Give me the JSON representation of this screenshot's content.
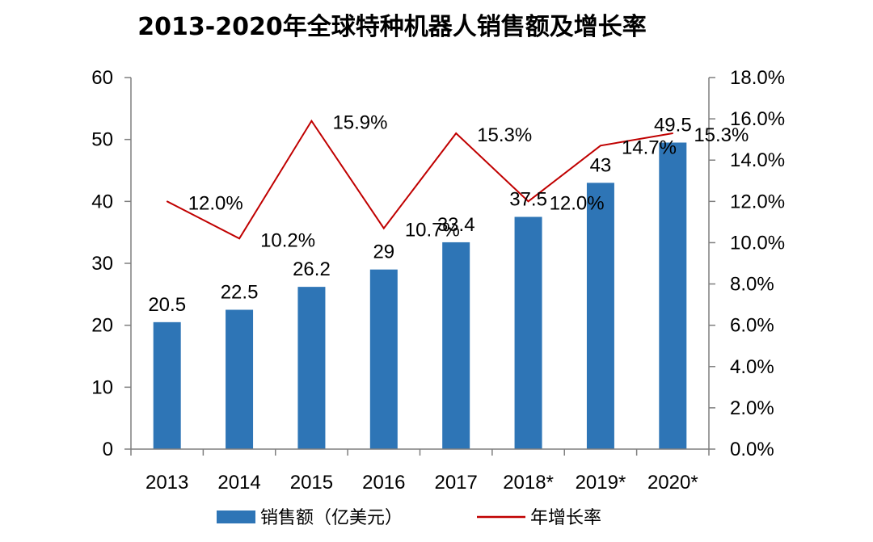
{
  "chart_data": {
    "type": "bar",
    "title": "2013-2020年全球特种机器人销售额及增长率",
    "categories": [
      "2013",
      "2014",
      "2015",
      "2016",
      "2017",
      "2018*",
      "2019*",
      "2020*"
    ],
    "series": [
      {
        "name": "销售额（亿美元）",
        "type": "bar",
        "axis": "left",
        "color": "#2E75B6",
        "values": [
          20.5,
          22.5,
          26.2,
          29,
          33.4,
          37.5,
          43,
          49.5
        ],
        "labels": [
          "20.5",
          "22.5",
          "26.2",
          "29",
          "33.4",
          "37.5",
          "43",
          "49.5"
        ]
      },
      {
        "name": "年增长率",
        "type": "line",
        "axis": "right",
        "color": "#C00000",
        "values": [
          12.0,
          10.2,
          15.9,
          10.7,
          15.3,
          12.0,
          14.7,
          15.3
        ],
        "labels": [
          "12.0%",
          "10.2%",
          "15.9%",
          "10.7%",
          "15.3%",
          "12.0%",
          "14.7%",
          "15.3%"
        ]
      }
    ],
    "y_left": {
      "min": 0,
      "max": 60,
      "ticks": [
        "0",
        "10",
        "20",
        "30",
        "40",
        "50",
        "60"
      ]
    },
    "y_right": {
      "min": 0,
      "max": 18,
      "ticks": [
        "0.0%",
        "2.0%",
        "4.0%",
        "6.0%",
        "8.0%",
        "10.0%",
        "12.0%",
        "14.0%",
        "16.0%",
        "18.0%"
      ]
    },
    "xlabel": "",
    "ylabel": "",
    "grid": false,
    "legend_position": "bottom"
  }
}
